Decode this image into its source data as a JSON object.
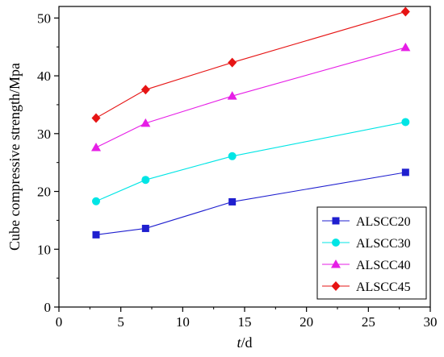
{
  "chart_data": {
    "type": "line",
    "xlabel": "t/d",
    "xlabel_italic_part": "t",
    "xlabel_rest": "/d",
    "ylabel": "Cube compressive strength/Mpa",
    "xlim": [
      0,
      30
    ],
    "ylim": [
      0,
      52
    ],
    "xticks": [
      0,
      5,
      10,
      15,
      20,
      25,
      30
    ],
    "yticks": [
      0,
      10,
      20,
      30,
      40,
      50
    ],
    "grid": false,
    "legend_position": "bottom-right",
    "x": [
      3,
      7,
      14,
      28
    ],
    "series": [
      {
        "name": "ALSCC20",
        "values": [
          12.5,
          13.6,
          18.2,
          23.3
        ],
        "color": "#1f1fcf",
        "marker": "square"
      },
      {
        "name": "ALSCC30",
        "values": [
          18.3,
          22.0,
          26.1,
          32.0
        ],
        "color": "#00e5e5",
        "marker": "circle"
      },
      {
        "name": "ALSCC40",
        "values": [
          27.6,
          31.8,
          36.5,
          44.9
        ],
        "color": "#e61ee6",
        "marker": "triangle"
      },
      {
        "name": "ALSCC45",
        "values": [
          32.7,
          37.6,
          42.3,
          51.1
        ],
        "color": "#e61414",
        "marker": "diamond"
      }
    ]
  }
}
